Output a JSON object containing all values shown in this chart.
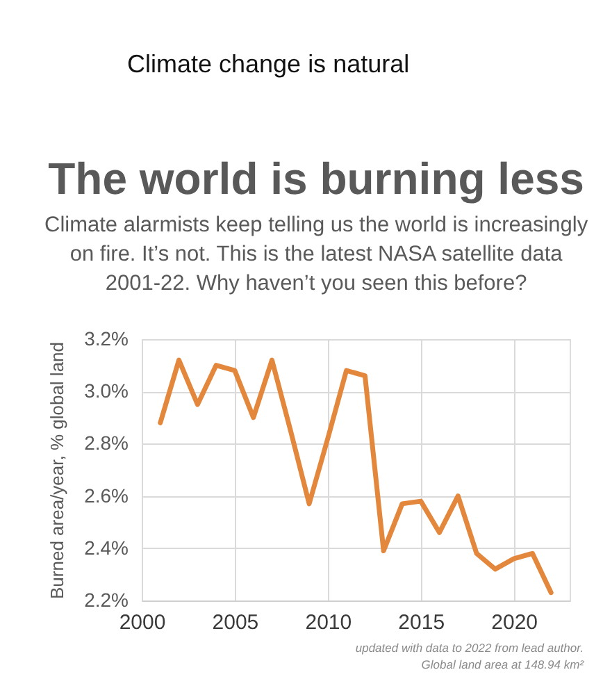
{
  "chart_data": {
    "type": "line",
    "title": "The world is burning less",
    "subtitle": "Climate alarmists keep telling us the world is increasingly on fire. It’s not. This is the latest NASA satellite data 2001-22. Why haven’t you seen this before?",
    "ylabel": "Burned area/year, % global land",
    "annotations": [
      "Climate change is natural",
      "updated with data to 2022 from lead author.",
      "Global land area at 148.94 km²"
    ],
    "x": [
      2001,
      2002,
      2003,
      2004,
      2005,
      2006,
      2007,
      2008,
      2009,
      2010,
      2011,
      2012,
      2013,
      2014,
      2015,
      2016,
      2017,
      2018,
      2019,
      2020,
      2021,
      2022
    ],
    "series": [
      {
        "color": "#e3873c",
        "values": [
          2.88,
          3.12,
          2.95,
          3.1,
          3.08,
          2.9,
          3.12,
          2.85,
          2.57,
          2.82,
          3.08,
          3.06,
          2.39,
          2.57,
          2.58,
          2.46,
          2.6,
          2.38,
          2.32,
          2.36,
          2.38,
          2.23
        ]
      }
    ],
    "xlim": [
      2000,
      2023
    ],
    "xticks": [
      2000,
      2005,
      2010,
      2015,
      2020
    ],
    "ylim": [
      2.2,
      3.2
    ],
    "yticks": [
      {
        "value": 2.2,
        "label": "2.2%"
      },
      {
        "value": 2.4,
        "label": "2.4%"
      },
      {
        "value": 2.6,
        "label": "2.6%"
      },
      {
        "value": 2.8,
        "label": "2.8%"
      },
      {
        "value": 3.0,
        "label": "3.0%"
      },
      {
        "value": 3.2,
        "label": "3.2%"
      }
    ],
    "grid": true,
    "line_style": "solid"
  }
}
